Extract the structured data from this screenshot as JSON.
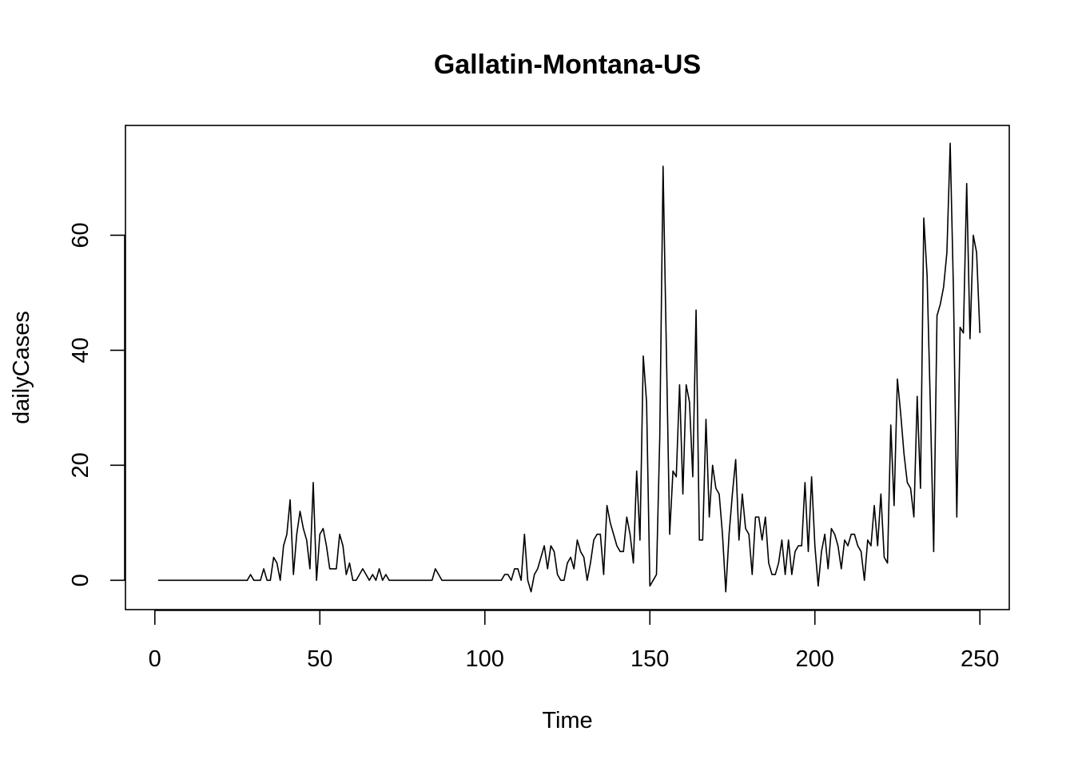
{
  "chart_data": {
    "type": "line",
    "title": "Gallatin-Montana-US",
    "xlabel": "Time",
    "ylabel": "dailyCases",
    "xlim": [
      -8.9,
      258.9
    ],
    "ylim": [
      -5.1,
      79.1
    ],
    "x_ticks": [
      0,
      50,
      100,
      150,
      200,
      250
    ],
    "y_ticks": [
      0,
      20,
      40,
      60
    ],
    "grid": false,
    "legend": "none",
    "x_start": 1,
    "series": [
      {
        "color": "#000000",
        "values": [
          0,
          0,
          0,
          0,
          0,
          0,
          0,
          0,
          0,
          0,
          0,
          0,
          0,
          0,
          0,
          0,
          0,
          0,
          0,
          0,
          0,
          0,
          0,
          0,
          0,
          0,
          0,
          0,
          1,
          0,
          0,
          0,
          2,
          0,
          0,
          4,
          3,
          0,
          6,
          8,
          14,
          1,
          8,
          12,
          9,
          7,
          2,
          17,
          0,
          8,
          9,
          6,
          2,
          2,
          2,
          8,
          6,
          1,
          3,
          0,
          0,
          1,
          2,
          1,
          0,
          1,
          0,
          2,
          0,
          1,
          0,
          0,
          0,
          0,
          0,
          0,
          0,
          0,
          0,
          0,
          0,
          0,
          0,
          0,
          2,
          1,
          0,
          0,
          0,
          0,
          0,
          0,
          0,
          0,
          0,
          0,
          0,
          0,
          0,
          0,
          0,
          0,
          0,
          0,
          0,
          1,
          1,
          0,
          2,
          2,
          0,
          8,
          0,
          -2,
          1,
          2,
          4,
          6,
          2,
          6,
          5,
          1,
          0,
          0,
          3,
          4,
          2,
          7,
          5,
          4,
          0,
          3,
          7,
          8,
          8,
          1,
          13,
          10,
          8,
          6,
          5,
          5,
          11,
          8,
          3,
          19,
          7,
          39,
          31,
          -1,
          0,
          1,
          25,
          72,
          40,
          8,
          19,
          18,
          34,
          15,
          34,
          31,
          18,
          47,
          7,
          7,
          28,
          11,
          20,
          16,
          15,
          8,
          -2,
          8,
          15,
          21,
          7,
          15,
          9,
          8,
          1,
          11,
          11,
          7,
          11,
          3,
          1,
          1,
          3,
          7,
          1,
          7,
          1,
          5,
          6,
          6,
          17,
          5,
          18,
          6,
          -1,
          5,
          8,
          2,
          9,
          8,
          6,
          2,
          7,
          6,
          8,
          8,
          6,
          5,
          0,
          7,
          6,
          13,
          6,
          15,
          4,
          3,
          27,
          13,
          35,
          29,
          22,
          17,
          16,
          11,
          32,
          16,
          63,
          53,
          30,
          5,
          46,
          48,
          51,
          57,
          76,
          50,
          11,
          44,
          43,
          69,
          42,
          60,
          57,
          43
        ]
      }
    ]
  }
}
